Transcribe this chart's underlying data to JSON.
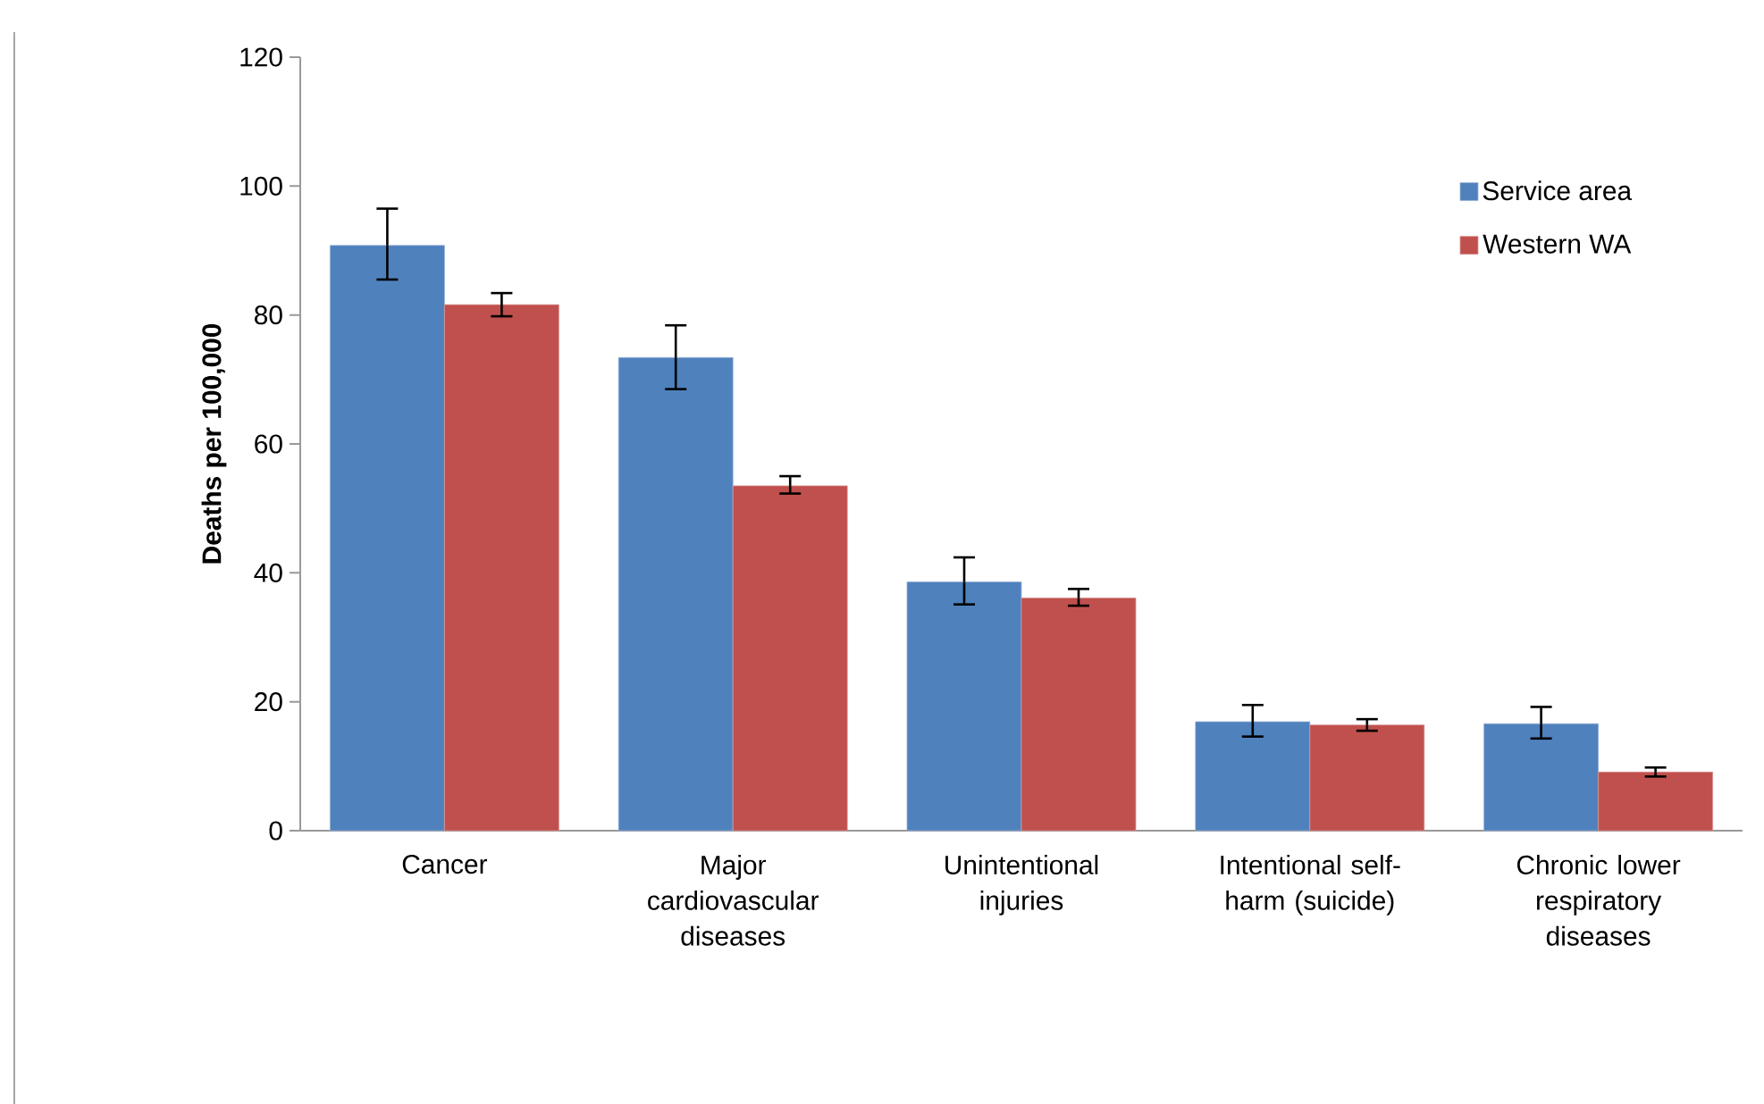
{
  "chart_data": {
    "type": "bar",
    "ylabel": "**Deaths per 100,000**",
    "categories": [
      "Cancer",
      "Major cardiovascular diseases",
      "Unintentional injuries",
      "Intentional self-harm (suicide)",
      "Chronic lower respiratory diseases"
    ],
    "series": [
      {
        "name": "Service area",
        "color": "#4f81bd",
        "values": [
          90.8,
          73.4,
          38.6,
          16.9,
          16.6
        ],
        "errors": [
          [
            85.5,
            96.5
          ],
          [
            68.5,
            78.4
          ],
          [
            35.1,
            42.4
          ],
          [
            14.6,
            19.5
          ],
          [
            14.3,
            19.2
          ]
        ]
      },
      {
        "name": "Western WA",
        "color": "#c0504d",
        "values": [
          81.6,
          53.5,
          36.1,
          16.4,
          9.1
        ],
        "errors": [
          [
            79.8,
            83.4
          ],
          [
            52.3,
            55.0
          ],
          [
            34.9,
            37.5
          ],
          [
            15.5,
            17.3
          ],
          [
            8.4,
            9.8
          ]
        ]
      }
    ],
    "ylim": [
      0,
      120
    ],
    "yticks": [
      0,
      20,
      40,
      60,
      80,
      100,
      120
    ],
    "grid": false,
    "legend": "top right"
  }
}
